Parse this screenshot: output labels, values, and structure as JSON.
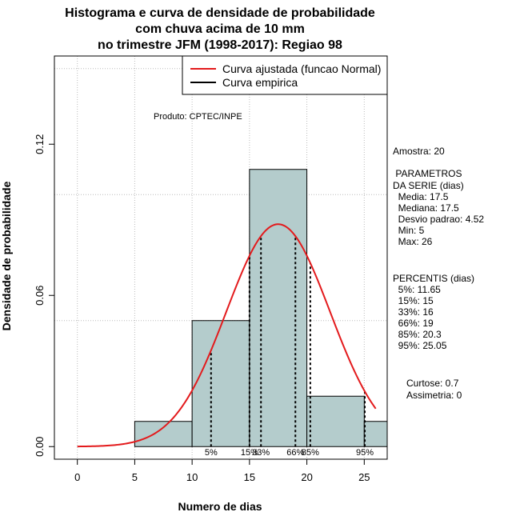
{
  "chart_data": {
    "type": "bar",
    "title": [
      "Histograma e curva de densidade de probabilidade",
      "com chuva acima de 10 mm",
      "no trimestre JFM (1998-2017): Regiao 98"
    ],
    "xlabel": "Numero de dias",
    "ylabel": "Densidade de probabilidade",
    "xlim": [
      -2,
      27
    ],
    "ylim": [
      -0.005,
      0.155
    ],
    "x_ticks": [
      0,
      5,
      10,
      15,
      20,
      25
    ],
    "y_ticks": [
      0.0,
      0.06,
      0.12
    ],
    "y_tick_labels": [
      "0.00",
      "0.06",
      "0.12"
    ],
    "x_gridlines": [
      0,
      5,
      10,
      15,
      20,
      25
    ],
    "y_gridlines": [
      0.05,
      0.1
    ],
    "bins": [
      {
        "start": 5,
        "end": 10,
        "density": 0.01
      },
      {
        "start": 10,
        "end": 15,
        "density": 0.05
      },
      {
        "start": 15,
        "end": 20,
        "density": 0.11
      },
      {
        "start": 20,
        "end": 25,
        "density": 0.02
      },
      {
        "start": 25,
        "end": 30,
        "density": 0.01
      }
    ],
    "normal_fit": {
      "mean": 17.5,
      "sd": 4.52,
      "x_from": 0,
      "x_to": 26
    },
    "percentiles": [
      {
        "label": "5%",
        "x": 11.65
      },
      {
        "label": "15%",
        "x": 15
      },
      {
        "label": "33%",
        "x": 16
      },
      {
        "label": "66%",
        "x": 19
      },
      {
        "label": "85%",
        "x": 20.3
      },
      {
        "label": "95%",
        "x": 25.05
      }
    ],
    "legend": [
      {
        "label": "Curva ajustada (funcao Normal)",
        "color": "#e31a1c"
      },
      {
        "label": "Curva empirica",
        "color": "#000000"
      }
    ],
    "legend_position": "top-right",
    "annotation": "Produto: CPTEC/INPE",
    "side_text": [
      "Amostra: 20",
      " PARAMETROS",
      "DA SERIE (dias)",
      "  Media: 17.5",
      "  Mediana: 17.5",
      "  Desvio padrao: 4.52",
      "  Min: 5",
      "  Max: 26",
      "PERCENTIS (dias)",
      "  5%: 11.65",
      "  15%: 15",
      "  33%: 16",
      "  66%: 19",
      "  85%: 20.3",
      "  95%: 25.05",
      "Curtose: 0.7",
      "Assimetria: 0"
    ],
    "colors": {
      "bar_fill": "#b4cccc",
      "curve": "#e31a1c",
      "grid": "#bbbbbb"
    }
  }
}
